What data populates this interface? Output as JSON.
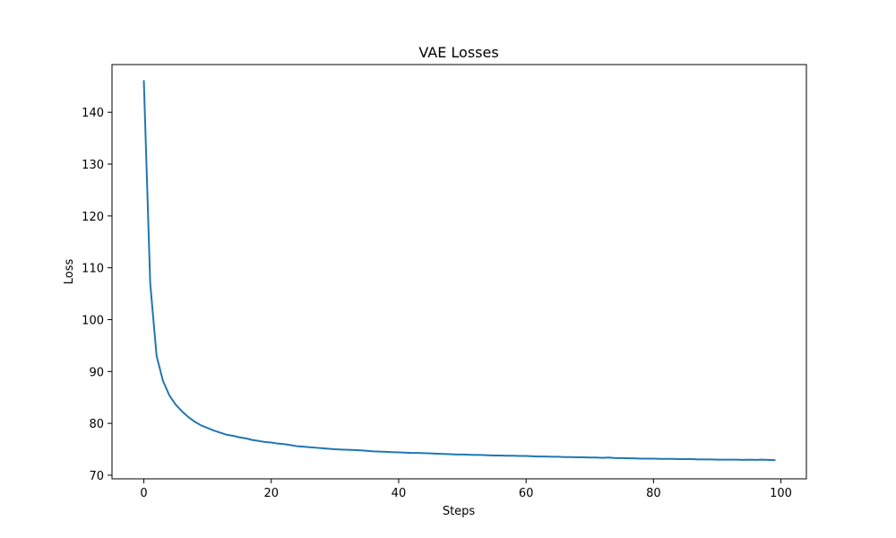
{
  "chart_data": {
    "type": "line",
    "title": "VAE Losses",
    "xlabel": "Steps",
    "ylabel": "Loss",
    "xlim": [
      -5,
      104
    ],
    "ylim": [
      69.3,
      149.2
    ],
    "xticks": [
      0,
      20,
      40,
      60,
      80,
      100
    ],
    "yticks": [
      70,
      80,
      90,
      100,
      110,
      120,
      130,
      140
    ],
    "grid": false,
    "line_color": "#1f77b4",
    "series": [
      {
        "x": [
          0,
          1,
          2,
          3,
          4,
          5,
          6,
          7,
          8,
          9,
          10,
          11,
          12,
          13,
          14,
          15,
          16,
          17,
          18,
          19,
          20,
          21,
          22,
          23,
          24,
          25,
          26,
          27,
          28,
          29,
          30,
          31,
          32,
          33,
          34,
          35,
          36,
          37,
          38,
          39,
          40,
          41,
          42,
          43,
          44,
          45,
          46,
          47,
          48,
          49,
          50,
          51,
          52,
          53,
          54,
          55,
          56,
          57,
          58,
          59,
          60,
          61,
          62,
          63,
          64,
          65,
          66,
          67,
          68,
          69,
          70,
          71,
          72,
          73,
          74,
          75,
          76,
          77,
          78,
          79,
          80,
          81,
          82,
          83,
          84,
          85,
          86,
          87,
          88,
          89,
          90,
          91,
          92,
          93,
          94,
          95,
          96,
          97,
          98,
          99
        ],
        "values": [
          146.0,
          107.0,
          93.0,
          88.2,
          85.4,
          83.6,
          82.3,
          81.2,
          80.3,
          79.6,
          79.1,
          78.6,
          78.2,
          77.8,
          77.6,
          77.3,
          77.1,
          76.8,
          76.6,
          76.4,
          76.3,
          76.1,
          76.0,
          75.8,
          75.6,
          75.5,
          75.4,
          75.3,
          75.2,
          75.1,
          75.0,
          74.95,
          74.9,
          74.85,
          74.8,
          74.7,
          74.6,
          74.55,
          74.5,
          74.45,
          74.4,
          74.35,
          74.3,
          74.3,
          74.25,
          74.2,
          74.15,
          74.1,
          74.05,
          74.0,
          74.0,
          73.95,
          73.9,
          73.9,
          73.85,
          73.8,
          73.8,
          73.75,
          73.75,
          73.7,
          73.7,
          73.65,
          73.6,
          73.6,
          73.55,
          73.55,
          73.5,
          73.5,
          73.45,
          73.45,
          73.4,
          73.4,
          73.35,
          73.4,
          73.3,
          73.3,
          73.25,
          73.25,
          73.2,
          73.2,
          73.2,
          73.15,
          73.15,
          73.15,
          73.1,
          73.1,
          73.1,
          73.05,
          73.05,
          73.05,
          73.0,
          73.0,
          73.0,
          73.0,
          72.95,
          73.0,
          72.95,
          73.0,
          72.95,
          72.9
        ]
      }
    ]
  }
}
